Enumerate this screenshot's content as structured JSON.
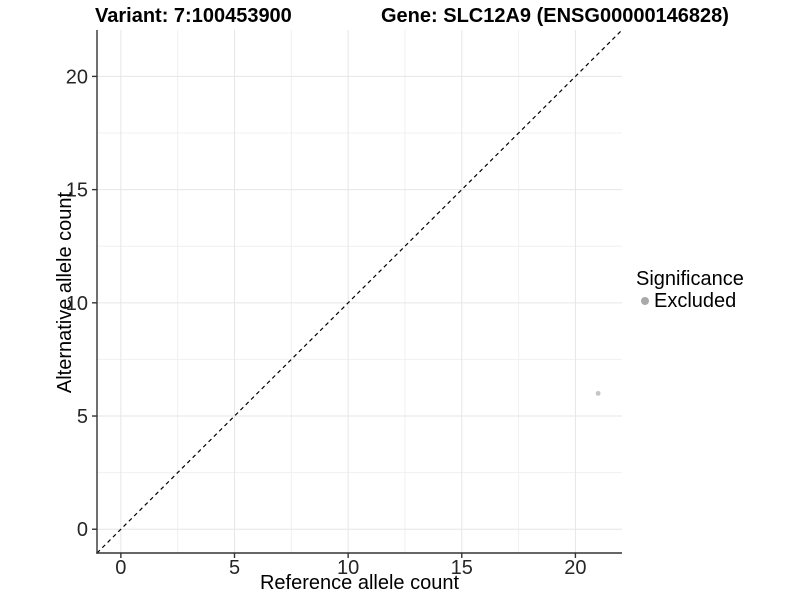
{
  "header": {
    "variant_title": "Variant: 7:100453900",
    "gene_title": "Gene: SLC12A9 (ENSG00000146828)"
  },
  "axes": {
    "x_label": "Reference allele count",
    "y_label": "Alternative allele count"
  },
  "legend": {
    "title": "Significance",
    "items": [
      {
        "label": "Excluded",
        "color": "#a9a9a9"
      }
    ]
  },
  "chart_data": {
    "type": "scatter",
    "title_left": "Variant: 7:100453900",
    "title_right": "Gene: SLC12A9 (ENSG00000146828)",
    "xlabel": "Reference allele count",
    "ylabel": "Alternative allele count",
    "xlim": [
      -1.05,
      22.05
    ],
    "ylim": [
      -1.05,
      22.05
    ],
    "x_ticks": [
      0,
      5,
      10,
      15,
      20
    ],
    "y_ticks": [
      0,
      5,
      10,
      15,
      20
    ],
    "x_minor_ticks": [
      2.5,
      7.5,
      12.5,
      17.5
    ],
    "y_minor_ticks": [
      2.5,
      7.5,
      12.5,
      17.5
    ],
    "grid": "major+minor",
    "legend_position": "right",
    "reference_line": {
      "kind": "identity-diagonal",
      "dashed": true,
      "color": "#000000"
    },
    "series": [
      {
        "name": "Excluded",
        "color": "#c5c5c5",
        "points": [
          {
            "x": 21,
            "y": 6
          }
        ]
      }
    ],
    "style": {
      "axis_line_color": "#333333",
      "tick_color": "#333333",
      "tick_label_color": "#262626",
      "major_grid_color": "#e6e6e6",
      "minor_grid_color": "#f0f0f0",
      "background": "#ffffff",
      "point_radius": 2.4,
      "legend_key_radius": 4
    }
  }
}
